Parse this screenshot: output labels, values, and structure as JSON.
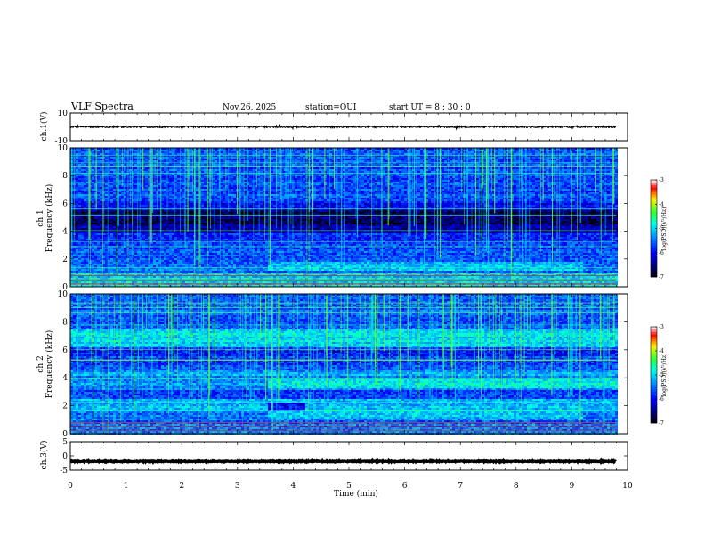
{
  "header": {
    "title": "VLF Spectra",
    "date": "Nov.26, 2025",
    "station": "station=OUI",
    "start_ut": "start UT =  8 : 30 : 0"
  },
  "chart_data": [
    {
      "type": "line",
      "name": "ch1-waveform",
      "ylabel": "ch.1(V)",
      "ylim": [
        -10,
        10
      ],
      "yticks": [
        "10",
        "-10"
      ],
      "xlim": [
        0,
        10
      ],
      "data_xlim": [
        0,
        9.8
      ],
      "baseline": 0,
      "noise_amplitude": 0.6
    },
    {
      "type": "heatmap",
      "name": "ch1-spectrogram",
      "ylabel_line1": "ch.1",
      "ylabel_line2": "Frequency (kHz)",
      "ylim": [
        0,
        10
      ],
      "yticks": [
        "0",
        "2",
        "4",
        "6",
        "8",
        "10"
      ],
      "xlim": [
        0,
        10
      ],
      "data_xlim": [
        0,
        9.8
      ],
      "colorbar": {
        "label": "log(PSD)(V²/Hz)",
        "range": [
          -7,
          -3
        ],
        "ticks": [
          "-3",
          "-4",
          "-5",
          "-6",
          "-7"
        ]
      }
    },
    {
      "type": "heatmap",
      "name": "ch2-spectrogram",
      "ylabel_line1": "ch.2",
      "ylabel_line2": "Frequency (kHz)",
      "ylim": [
        0,
        10
      ],
      "yticks": [
        "0",
        "2",
        "4",
        "6",
        "8",
        "10"
      ],
      "xlim": [
        0,
        10
      ],
      "data_xlim": [
        0,
        9.8
      ],
      "colorbar": {
        "label": "log(PSD)(V²/Hz)",
        "range": [
          -7,
          -3
        ],
        "ticks": [
          "-3",
          "-4",
          "-5",
          "-6",
          "-7"
        ]
      }
    },
    {
      "type": "line",
      "name": "ch3-waveform",
      "ylabel": "ch.3(V)",
      "ylim": [
        -5,
        5
      ],
      "yticks": [
        "5",
        "0",
        "-5"
      ],
      "xlim": [
        0,
        10
      ],
      "data_xlim": [
        0,
        9.8
      ],
      "baseline": -1.8,
      "noise_amplitude": 0.15
    }
  ],
  "xaxis": {
    "label": "Time (min)",
    "ticks": [
      "0",
      "1",
      "2",
      "3",
      "4",
      "5",
      "6",
      "7",
      "8",
      "9",
      "10"
    ]
  }
}
